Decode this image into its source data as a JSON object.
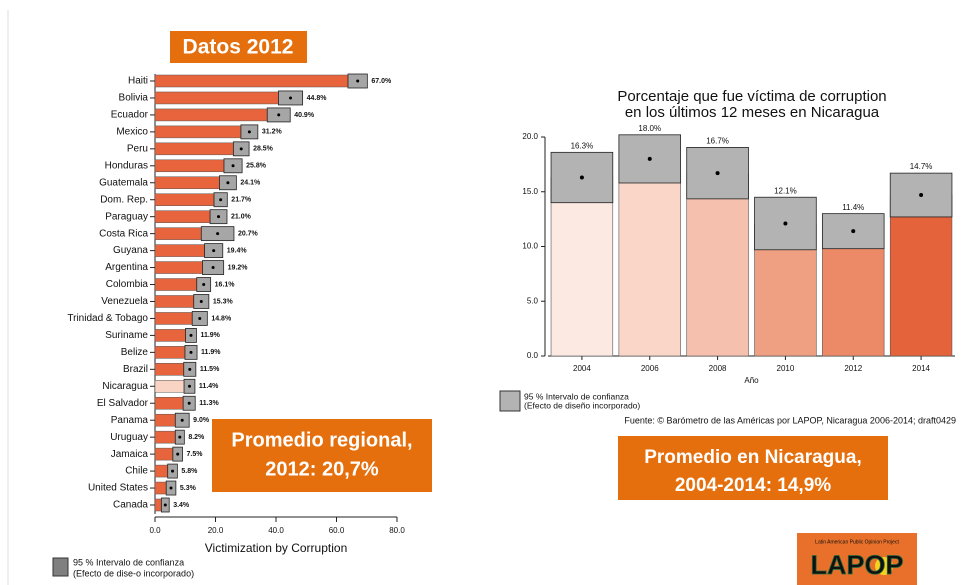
{
  "slide": {
    "header": "Datos 2012",
    "regional_box": [
      "Promedio regional,",
      "2012: 20,7%"
    ],
    "left_legend": [
      "95 % Intervalo de confianza",
      "(Efecto de dise-o incorporado)"
    ],
    "right_legend": [
      "95 % Intervalo de confianza",
      "(Efecto de diseño incorporado)"
    ],
    "source": "Fuente: © Barómetro de las Américas por LAPOP, Nicaragua 2006-2014; draft0429",
    "nicaragua_box": [
      "Promedio en Nicaragua,",
      "2004-2014: 14,9%"
    ],
    "logo": {
      "tagline": "Latin American Public Opinion Project",
      "name": "LAPOP"
    }
  },
  "chart_data": [
    {
      "type": "bar",
      "orientation": "horizontal",
      "x_label": "Victimization by Corruption",
      "categories": [
        "Haiti",
        "Bolivia",
        "Ecuador",
        "Mexico",
        "Peru",
        "Honduras",
        "Guatemala",
        "Dom. Rep.",
        "Paraguay",
        "Costa Rica",
        "Guyana",
        "Argentina",
        "Colombia",
        "Venezuela",
        "Trinidad & Tobago",
        "Suriname",
        "Belize",
        "Brazil",
        "Nicaragua",
        "El Salvador",
        "Panama",
        "Uruguay",
        "Jamaica",
        "Chile",
        "United States",
        "Canada"
      ],
      "values": [
        67.0,
        44.8,
        40.9,
        31.2,
        28.5,
        25.8,
        24.1,
        21.7,
        21.0,
        20.7,
        19.4,
        19.2,
        16.1,
        15.3,
        14.8,
        11.9,
        11.9,
        11.5,
        11.4,
        11.3,
        9.0,
        8.2,
        7.5,
        5.8,
        5.3,
        3.4
      ],
      "value_labels": [
        "67.0%",
        "44.8%",
        "40.9%",
        "31.2%",
        "28.5%",
        "25.8%",
        "24.1%",
        "21.7%",
        "21.0%",
        "20.7%",
        "19.4%",
        "19.2%",
        "16.1%",
        "15.3%",
        "14.8%",
        "11.9%",
        "11.9%",
        "11.5%",
        "11.4%",
        "11.3%",
        "9.0%",
        "8.2%",
        "7.5%",
        "5.8%",
        "5.3%",
        "3.4%"
      ],
      "errors": [
        3.2,
        4.0,
        3.8,
        2.8,
        2.6,
        3.0,
        2.8,
        2.2,
        2.8,
        5.4,
        3.0,
        3.5,
        2.3,
        2.5,
        2.5,
        1.8,
        2.0,
        2.0,
        1.8,
        2.0,
        2.3,
        1.5,
        1.6,
        1.6,
        1.6,
        1.3
      ],
      "colors": [
        "#e8643c",
        "#e8643c",
        "#e8643c",
        "#e8643c",
        "#e8643c",
        "#e8643c",
        "#e8643c",
        "#e8643c",
        "#e8643c",
        "#e8643c",
        "#e8643c",
        "#e8643c",
        "#e8643c",
        "#e8643c",
        "#e8643c",
        "#e8643c",
        "#e8643c",
        "#e8643c",
        "#f9d3c4",
        "#e8643c",
        "#e8643c",
        "#e8643c",
        "#e8643c",
        "#e8643c",
        "#e8643c",
        "#e8643c"
      ],
      "ci_color": "#a6a6a6",
      "xlim": [
        0,
        80
      ],
      "xticks": [
        {
          "value": 0,
          "label": "0.0"
        },
        {
          "value": 20,
          "label": "20.0"
        },
        {
          "value": 40,
          "label": "40.0"
        },
        {
          "value": 60,
          "label": "60.0"
        },
        {
          "value": 80,
          "label": "80.0"
        }
      ]
    },
    {
      "type": "bar",
      "orientation": "vertical",
      "title": [
        "Porcentaje que fue víctima de corruption",
        "en los últimos 12 meses en Nicaragua"
      ],
      "x_label": "Año",
      "categories": [
        "2004",
        "2006",
        "2008",
        "2010",
        "2012",
        "2014"
      ],
      "values": [
        16.3,
        18.0,
        16.7,
        12.1,
        11.4,
        14.7
      ],
      "value_labels": [
        "16.3%",
        "18.0%",
        "16.7%",
        "12.1%",
        "11.4%",
        "14.7%"
      ],
      "errors": [
        2.3,
        2.2,
        2.35,
        2.4,
        1.6,
        2.0
      ],
      "colors": [
        "#fce9e2",
        "#fad6c9",
        "#f5c0ad",
        "#ef9f82",
        "#ec8a68",
        "#e4633a"
      ],
      "ci_color": "#b3b3b3",
      "ylim": [
        0,
        20
      ],
      "yticks": [
        {
          "value": 0,
          "label": "0.0"
        },
        {
          "value": 5,
          "label": "5.0"
        },
        {
          "value": 10,
          "label": "10.0"
        },
        {
          "value": 15,
          "label": "15.0"
        },
        {
          "value": 20,
          "label": "20.0"
        }
      ]
    }
  ]
}
